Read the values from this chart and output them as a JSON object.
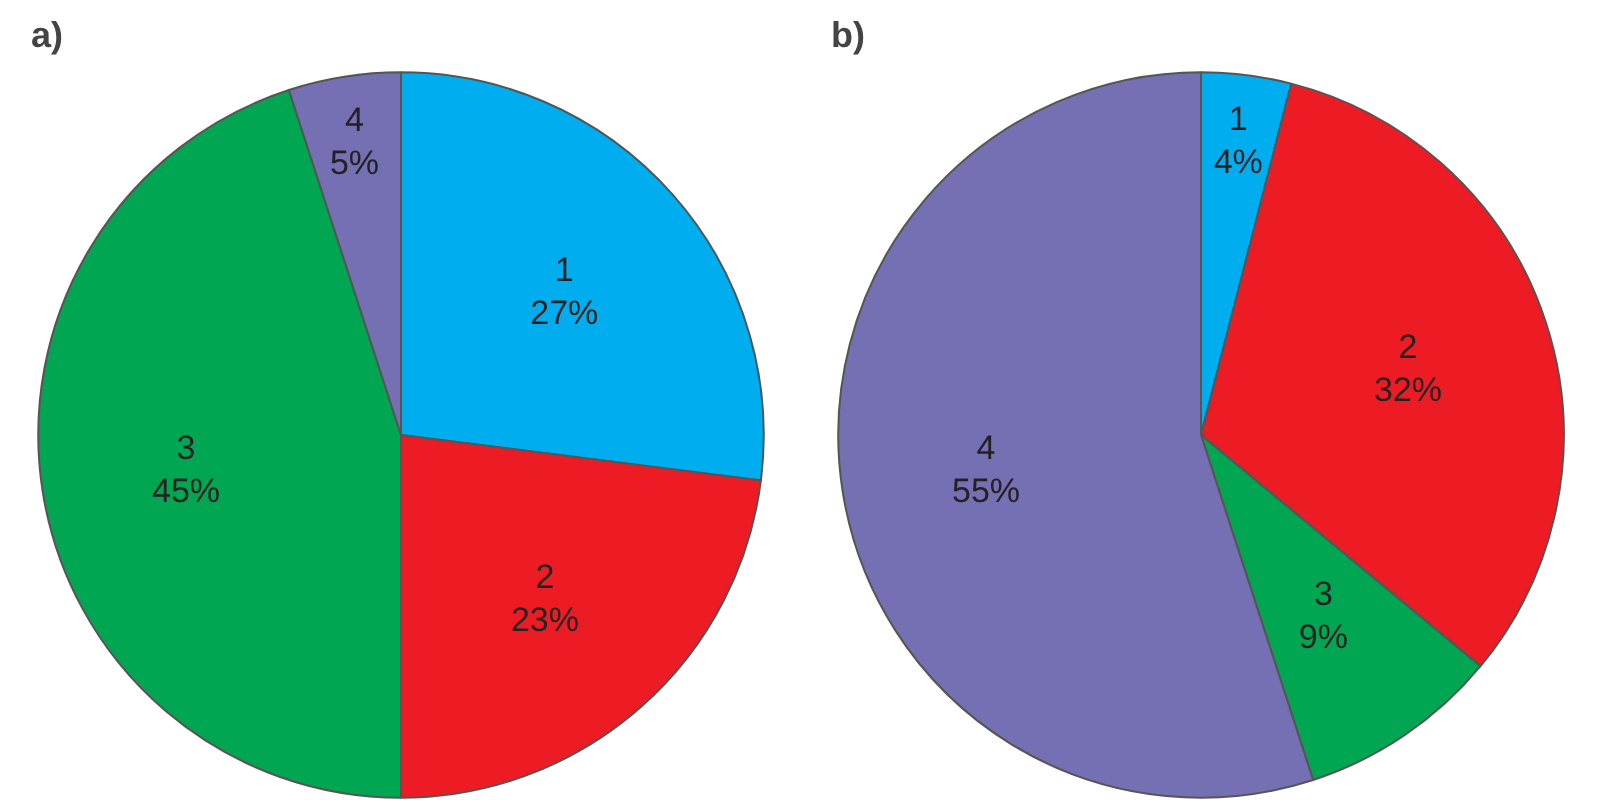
{
  "chart_data": [
    {
      "type": "pie",
      "title": "a)",
      "categories": [
        "1",
        "2",
        "3",
        "4"
      ],
      "values": [
        27,
        23,
        45,
        5
      ],
      "colors": [
        "#00aeef",
        "#ed1c24",
        "#00a651",
        "#7470b3"
      ],
      "value_labels": [
        "27%",
        "23%",
        "45%",
        "5%"
      ]
    },
    {
      "type": "pie",
      "title": "b)",
      "categories": [
        "1",
        "2",
        "3",
        "4"
      ],
      "values": [
        4,
        32,
        9,
        55
      ],
      "colors": [
        "#00aeef",
        "#ed1c24",
        "#00a651",
        "#7470b3"
      ],
      "value_labels": [
        "4%",
        "32%",
        "9%",
        "55%"
      ]
    }
  ]
}
